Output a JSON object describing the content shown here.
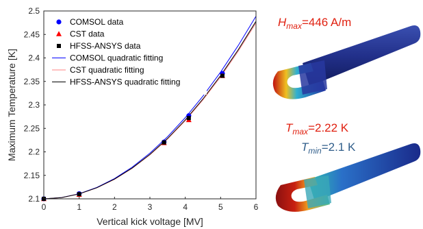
{
  "chart_data": {
    "type": "scatter",
    "xlabel": "Vertical kick voltage [MV]",
    "ylabel": "Maximum Temperature [K]",
    "xlim": [
      0,
      6
    ],
    "ylim": [
      2.1,
      2.5
    ],
    "xticks": [
      "0",
      "1",
      "2",
      "3",
      "4",
      "5",
      "6"
    ],
    "yticks": [
      "2.1",
      "2.15",
      "2.2",
      "2.25",
      "2.3",
      "2.35",
      "2.4",
      "2.45",
      "2.5"
    ],
    "legend_position": "top-left",
    "grid": false,
    "series": [
      {
        "name": "COMSOL data",
        "kind": "marker",
        "marker": "circle",
        "color": "#0000ff",
        "x": [
          0,
          1,
          3.4,
          4.1,
          5.05
        ],
        "y": [
          2.1,
          2.111,
          2.221,
          2.277,
          2.367
        ]
      },
      {
        "name": "CST data",
        "kind": "marker",
        "marker": "triangle",
        "color": "#ff0000",
        "x": [
          0,
          1,
          3.4,
          4.1,
          5.05
        ],
        "y": [
          2.1,
          2.109,
          2.219,
          2.268,
          2.362
        ]
      },
      {
        "name": "HFSS-ANSYS data",
        "kind": "marker",
        "marker": "square",
        "color": "#000000",
        "x": [
          0,
          1,
          3.4,
          4.1,
          5.05
        ],
        "y": [
          2.1,
          2.11,
          2.22,
          2.272,
          2.362
        ]
      },
      {
        "name": "COMSOL quadratic fitting",
        "kind": "line",
        "color": "#0000ff",
        "x": [
          0,
          0.5,
          1,
          1.5,
          2,
          2.5,
          3,
          3.5,
          4,
          4.5,
          5,
          5.5,
          6
        ],
        "y": [
          2.1,
          2.1027,
          2.1108,
          2.1243,
          2.1432,
          2.1675,
          2.1972,
          2.2323,
          2.2728,
          2.3187,
          2.37,
          2.4267,
          2.4888
        ]
      },
      {
        "name": "CST quadratic fitting",
        "kind": "line",
        "color": "#ff8080",
        "x": [
          0,
          0.5,
          1,
          1.5,
          2,
          2.5,
          3,
          3.5,
          4,
          4.5,
          5,
          5.5,
          6
        ],
        "y": [
          2.1,
          2.1026,
          2.1104,
          2.1234,
          2.1416,
          2.165,
          2.1936,
          2.2274,
          2.2664,
          2.3106,
          2.36,
          2.4146,
          2.4744
        ]
      },
      {
        "name": "HFSS-ANSYS quadratic fitting",
        "kind": "line",
        "color": "#000000",
        "x": [
          0,
          0.5,
          1,
          1.5,
          2,
          2.5,
          3,
          3.5,
          4,
          4.5,
          5,
          5.5,
          6
        ],
        "y": [
          2.1,
          2.1026,
          2.1105,
          2.1236,
          2.142,
          2.1656,
          2.1945,
          2.2286,
          2.268,
          2.3126,
          2.3625,
          2.4176,
          2.478
        ]
      }
    ]
  },
  "annotations": {
    "hmax": {
      "symbol": "H",
      "sub": "max",
      "value": "=446 A/m"
    },
    "tmax": {
      "symbol": "T",
      "sub": "max",
      "value": "=2.22 K"
    },
    "tmin": {
      "symbol": "T",
      "sub": "min",
      "value": "=2.1 K"
    }
  }
}
